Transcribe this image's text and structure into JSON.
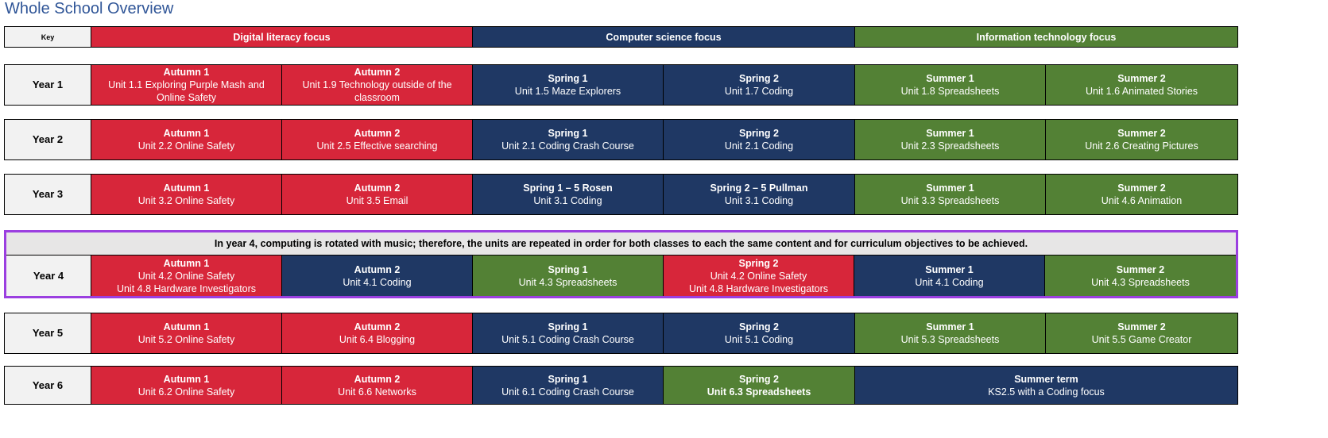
{
  "title": "Whole School Overview",
  "colors": {
    "digital_literacy": "#d7263a",
    "computer_science": "#1f3864",
    "information_technology": "#538135",
    "year4_highlight": "#9b3fe0"
  },
  "key": {
    "label": "Key",
    "digital": "Digital literacy focus",
    "cs": "Computer science focus",
    "it": "Information technology focus"
  },
  "year4_note": "In year 4, computing is rotated with music; therefore, the units are repeated in order for both classes to each the same content and for curriculum objectives to be achieved.",
  "years": [
    {
      "label": "Year 1",
      "cells": [
        {
          "term": "Autumn 1",
          "units": [
            "Unit 1.1 Exploring Purple Mash and",
            "Online Safety"
          ]
        },
        {
          "term": "Autumn 2",
          "units": [
            "Unit 1.9 Technology outside of the",
            "classroom"
          ]
        },
        {
          "term": "Spring 1",
          "units": [
            "Unit 1.5 Maze Explorers"
          ]
        },
        {
          "term": "Spring 2",
          "units": [
            "Unit 1.7 Coding"
          ]
        },
        {
          "term": "Summer 1",
          "units": [
            "Unit 1.8 Spreadsheets"
          ]
        },
        {
          "term": "Summer 2",
          "units": [
            "Unit 1.6 Animated Stories"
          ]
        }
      ]
    },
    {
      "label": "Year 2",
      "cells": [
        {
          "term": "Autumn 1",
          "units": [
            "Unit 2.2 Online Safety"
          ]
        },
        {
          "term": "Autumn 2",
          "units": [
            "Unit 2.5 Effective searching"
          ]
        },
        {
          "term": "Spring 1",
          "units": [
            "Unit 2.1 Coding Crash Course"
          ]
        },
        {
          "term": "Spring 2",
          "units": [
            "Unit 2.1 Coding"
          ]
        },
        {
          "term": "Summer 1",
          "units": [
            "Unit 2.3 Spreadsheets"
          ]
        },
        {
          "term": "Summer 2",
          "units": [
            "Unit 2.6 Creating Pictures"
          ]
        }
      ]
    },
    {
      "label": "Year 3",
      "cells": [
        {
          "term": "Autumn 1",
          "units": [
            "Unit 3.2 Online Safety"
          ]
        },
        {
          "term": "Autumn 2",
          "units": [
            "Unit 3.5 Email"
          ]
        },
        {
          "term": "Spring 1 – 5 Rosen",
          "units": [
            "Unit 3.1 Coding"
          ]
        },
        {
          "term": "Spring 2 – 5 Pullman",
          "units": [
            "Unit 3.1 Coding"
          ]
        },
        {
          "term": "Summer 1",
          "units": [
            "Unit 3.3 Spreadsheets"
          ]
        },
        {
          "term": "Summer 2",
          "units": [
            "Unit 4.6 Animation"
          ]
        }
      ]
    },
    {
      "label": "Year 4",
      "cells": [
        {
          "term": "Autumn 1",
          "units": [
            "Unit 4.2 Online Safety",
            "Unit 4.8 Hardware Investigators"
          ]
        },
        {
          "term": "Autumn 2",
          "units": [
            "Unit 4.1 Coding"
          ]
        },
        {
          "term": "Spring 1",
          "units": [
            "Unit 4.3 Spreadsheets"
          ]
        },
        {
          "term": "Spring 2",
          "units": [
            "Unit 4.2 Online Safety",
            "Unit 4.8 Hardware Investigators"
          ]
        },
        {
          "term": "Summer 1",
          "units": [
            "Unit 4.1 Coding"
          ]
        },
        {
          "term": "Summer 2",
          "units": [
            "Unit 4.3 Spreadsheets"
          ]
        }
      ]
    },
    {
      "label": "Year 5",
      "cells": [
        {
          "term": "Autumn 1",
          "units": [
            "Unit 5.2 Online Safety"
          ]
        },
        {
          "term": "Autumn 2",
          "units": [
            "Unit 6.4 Blogging"
          ]
        },
        {
          "term": "Spring 1",
          "units": [
            "Unit 5.1 Coding Crash Course"
          ]
        },
        {
          "term": "Spring 2",
          "units": [
            "Unit 5.1 Coding"
          ]
        },
        {
          "term": "Summer 1",
          "units": [
            "Unit 5.3 Spreadsheets"
          ]
        },
        {
          "term": "Summer 2",
          "units": [
            "Unit 5.5 Game Creator"
          ]
        }
      ]
    },
    {
      "label": "Year 6",
      "cells": [
        {
          "term": "Autumn 1",
          "units": [
            "Unit 6.2 Online Safety"
          ]
        },
        {
          "term": "Autumn 2",
          "units": [
            "Unit 6.6 Networks"
          ]
        },
        {
          "term": "Spring 1",
          "units": [
            "Unit 6.1 Coding Crash Course"
          ]
        },
        {
          "term": "Spring 2",
          "units": [
            "Unit 6.3 Spreadsheets"
          ]
        },
        {
          "term": "Summer term",
          "units": [
            "KS2.5 with a Coding focus"
          ]
        }
      ]
    }
  ]
}
